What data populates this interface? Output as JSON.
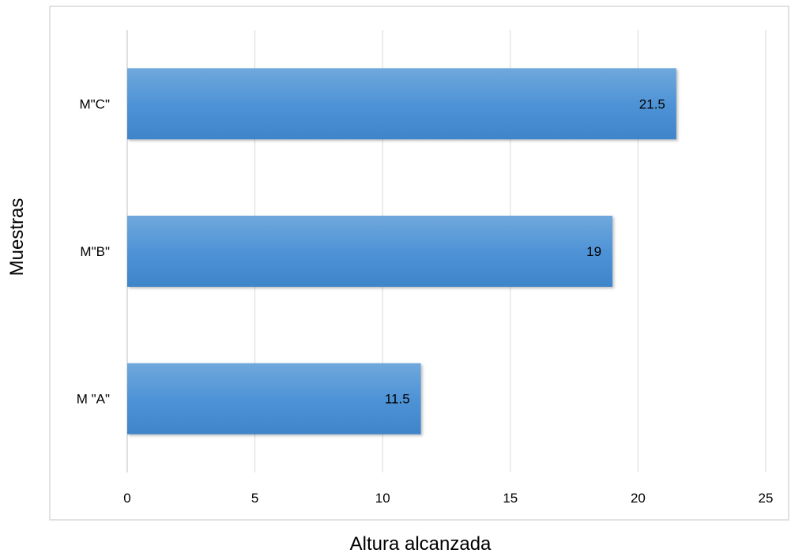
{
  "chart_data": {
    "type": "bar",
    "orientation": "horizontal",
    "categories": [
      "M \"A\"",
      "M\"B\"",
      "M\"C\""
    ],
    "values": [
      11.5,
      19,
      21.5
    ],
    "data_labels": [
      "11.5",
      "19",
      "21.5"
    ],
    "title": "",
    "xlabel": "Altura alcanzada",
    "ylabel": "Muestras",
    "xlim": [
      0,
      25
    ],
    "xticks": [
      0,
      5,
      10,
      15,
      20,
      25
    ],
    "xtick_labels": [
      "0",
      "5",
      "10",
      "15",
      "20",
      "25"
    ],
    "grid": "vertical",
    "legend": "none",
    "colors": {
      "bar_light": "#6fa8dc",
      "bar_dark": "#3f84c9",
      "bar_mid": "#4f93d6",
      "grid": "#d9d9d9",
      "frame": "#d9d9d9"
    }
  }
}
